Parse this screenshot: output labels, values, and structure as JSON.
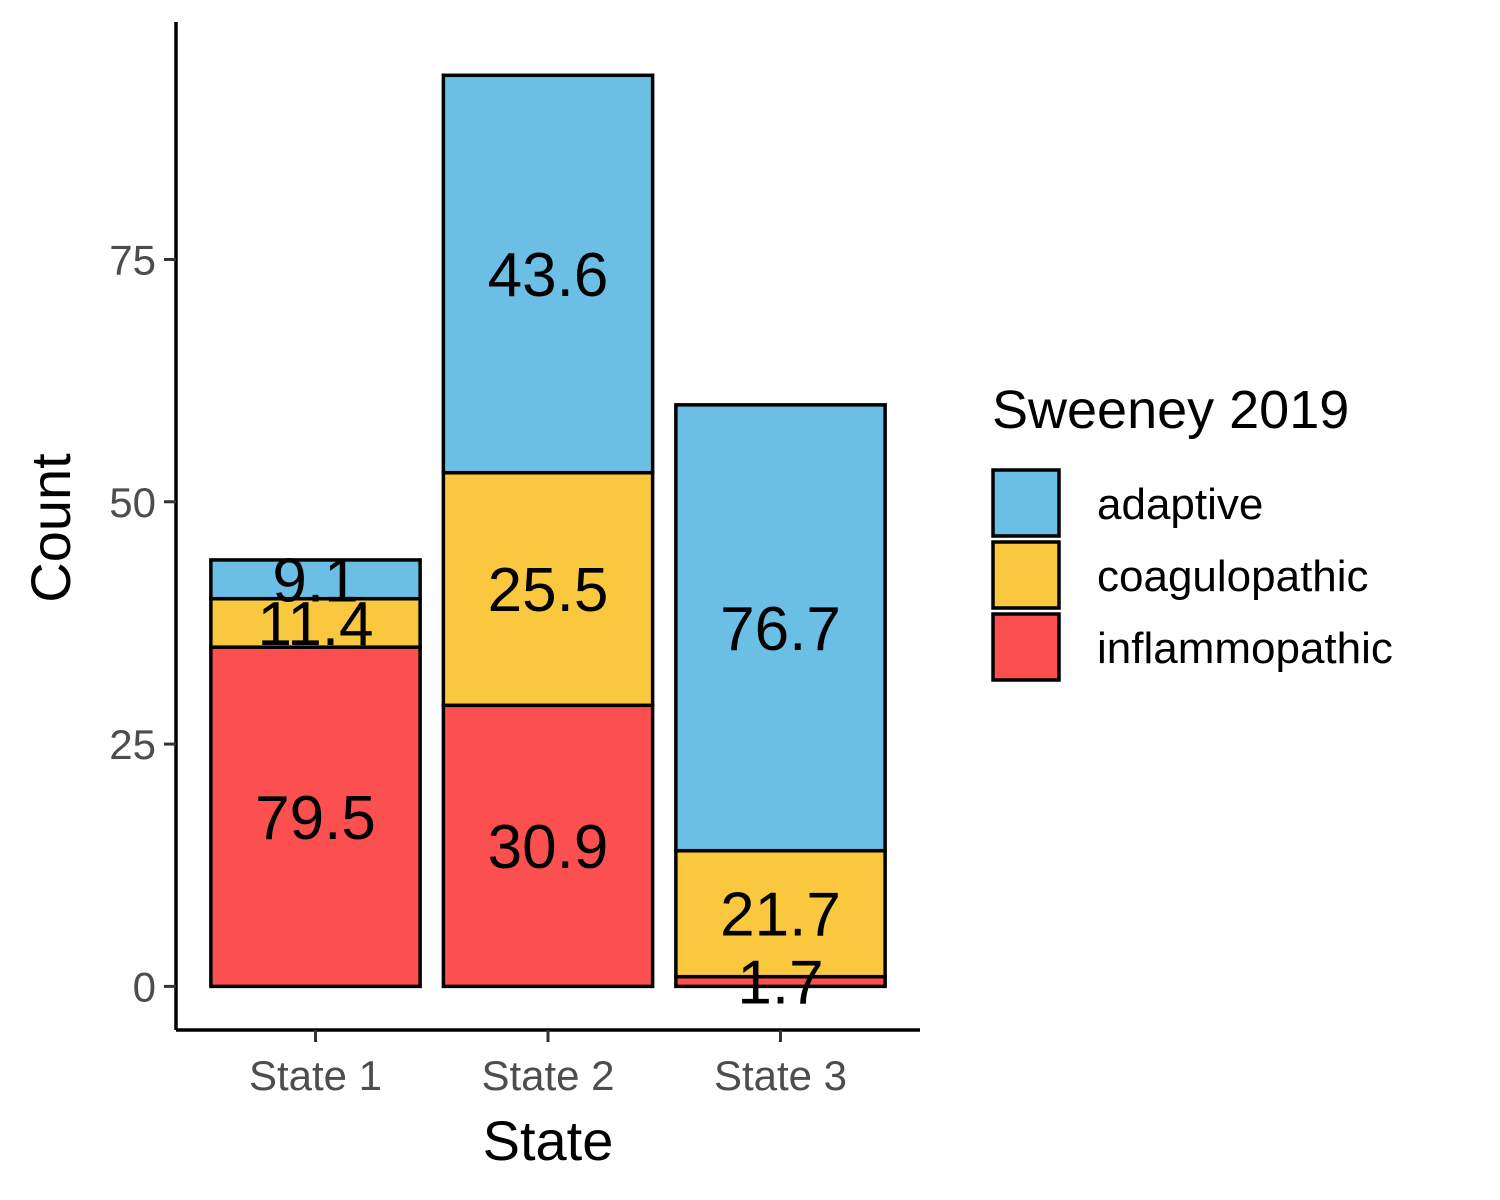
{
  "chart_data": {
    "type": "bar",
    "stacked": true,
    "categories": [
      "State 1",
      "State 2",
      "State 3"
    ],
    "series": [
      {
        "name": "inflammopathic",
        "color": "#FC5050",
        "values": [
          35,
          29,
          1
        ]
      },
      {
        "name": "coagulopathic",
        "color": "#F9C83F",
        "values": [
          5,
          24,
          13
        ]
      },
      {
        "name": "adaptive",
        "color": "#6BBFE4",
        "values": [
          4,
          41,
          46
        ]
      }
    ],
    "data_labels": [
      [
        "79.5",
        "30.9",
        "1.7"
      ],
      [
        "11.4",
        "25.5",
        "21.7"
      ],
      [
        "9.1",
        "43.6",
        "76.7"
      ]
    ],
    "xlabel": "State",
    "ylabel": "Count",
    "yticks": [
      0,
      25,
      50,
      75
    ],
    "ylim": [
      -4.5,
      99.5
    ],
    "grid": false,
    "legend": {
      "title": "Sweeney 2019",
      "placement": "right",
      "entries": [
        "adaptive",
        "coagulopathic",
        "inflammopathic"
      ]
    }
  }
}
